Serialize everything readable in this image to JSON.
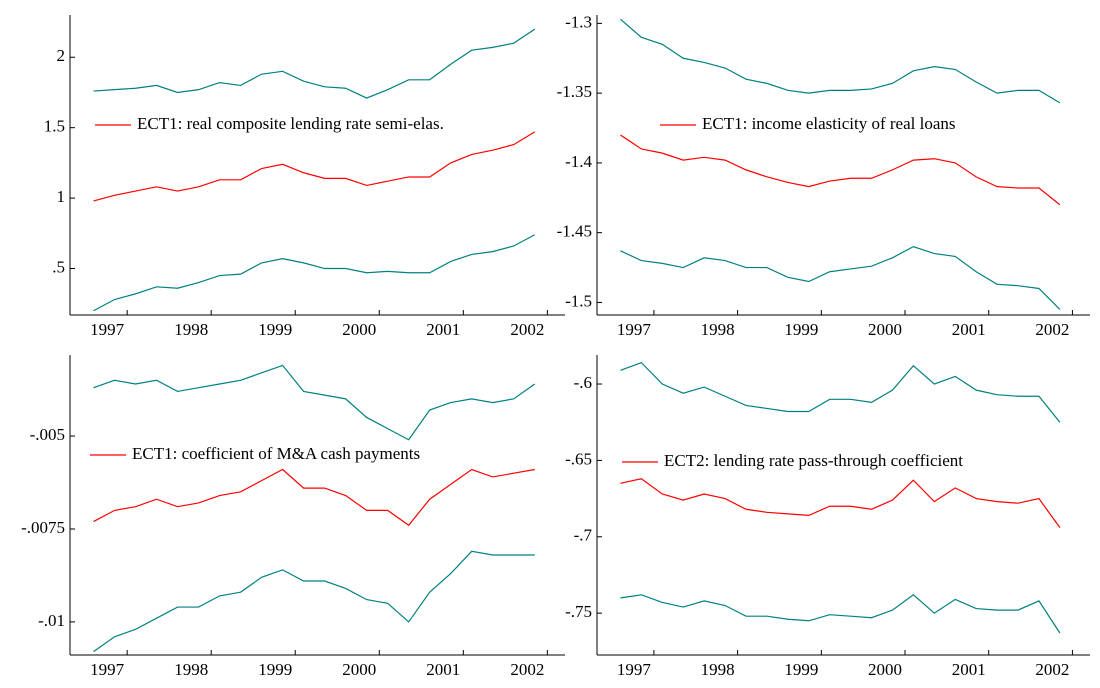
{
  "chart_data": [
    {
      "type": "line",
      "x": [
        1996.6,
        1996.85,
        1997.1,
        1997.35,
        1997.6,
        1997.85,
        1998.1,
        1998.35,
        1998.6,
        1998.85,
        1999.1,
        1999.35,
        1999.6,
        1999.85,
        2000.1,
        2000.35,
        2000.6,
        2000.85,
        2001.1,
        2001.35,
        2001.6,
        2001.85
      ],
      "xlim": [
        1996.32,
        2002.21
      ],
      "xticks": [
        1997,
        1998,
        1999,
        2000,
        2001,
        2002
      ],
      "ylim": [
        0.17,
        2.3
      ],
      "yticks": [
        {
          "value": 0.5,
          "label": ".5"
        },
        1,
        1.5,
        2
      ],
      "series": [
        {
          "color": "#008080",
          "values": [
            1.76,
            1.77,
            1.78,
            1.8,
            1.75,
            1.77,
            1.82,
            1.8,
            1.88,
            1.9,
            1.83,
            1.79,
            1.78,
            1.71,
            1.77,
            1.84,
            1.84,
            1.95,
            2.05,
            2.07,
            2.1,
            2.2
          ]
        },
        {
          "name": "ECT1: real composite lending rate semi-elas.",
          "color": "#ff0000",
          "values": [
            0.98,
            1.02,
            1.05,
            1.08,
            1.05,
            1.08,
            1.13,
            1.13,
            1.21,
            1.24,
            1.18,
            1.14,
            1.14,
            1.09,
            1.12,
            1.15,
            1.15,
            1.25,
            1.31,
            1.34,
            1.38,
            1.47
          ]
        },
        {
          "color": "#008080",
          "values": [
            0.2,
            0.28,
            0.32,
            0.37,
            0.36,
            0.4,
            0.45,
            0.46,
            0.54,
            0.57,
            0.54,
            0.5,
            0.5,
            0.47,
            0.48,
            0.47,
            0.47,
            0.55,
            0.6,
            0.62,
            0.66,
            0.74
          ]
        }
      ]
    },
    {
      "type": "line",
      "x": [
        1996.6,
        1996.85,
        1997.1,
        1997.35,
        1997.6,
        1997.85,
        1998.1,
        1998.35,
        1998.6,
        1998.85,
        1999.1,
        1999.35,
        1999.6,
        1999.85,
        2000.1,
        2000.35,
        2000.6,
        2000.85,
        2001.1,
        2001.35,
        2001.6,
        2001.85
      ],
      "xlim": [
        1996.32,
        2002.21
      ],
      "xticks": [
        1997,
        1998,
        1999,
        2000,
        2001,
        2002
      ],
      "ylim": [
        -1.509,
        -1.294
      ],
      "yticks": [
        -1.5,
        -1.45,
        -1.4,
        -1.35,
        -1.3
      ],
      "series": [
        {
          "color": "#008080",
          "values": [
            -1.297,
            -1.31,
            -1.315,
            -1.325,
            -1.328,
            -1.332,
            -1.34,
            -1.343,
            -1.348,
            -1.35,
            -1.348,
            -1.348,
            -1.347,
            -1.343,
            -1.334,
            -1.331,
            -1.333,
            -1.342,
            -1.35,
            -1.348,
            -1.348,
            -1.357
          ]
        },
        {
          "name": "ECT1: income elasticity of real loans",
          "color": "#ff0000",
          "values": [
            -1.38,
            -1.39,
            -1.393,
            -1.398,
            -1.396,
            -1.398,
            -1.405,
            -1.41,
            -1.414,
            -1.417,
            -1.413,
            -1.411,
            -1.411,
            -1.405,
            -1.398,
            -1.397,
            -1.4,
            -1.41,
            -1.417,
            -1.418,
            -1.418,
            -1.43
          ]
        },
        {
          "color": "#008080",
          "values": [
            -1.463,
            -1.47,
            -1.472,
            -1.475,
            -1.468,
            -1.47,
            -1.475,
            -1.475,
            -1.482,
            -1.485,
            -1.478,
            -1.476,
            -1.474,
            -1.468,
            -1.46,
            -1.465,
            -1.467,
            -1.478,
            -1.487,
            -1.488,
            -1.49,
            -1.505
          ]
        }
      ]
    },
    {
      "type": "line",
      "x": [
        1996.6,
        1996.85,
        1997.1,
        1997.35,
        1997.6,
        1997.85,
        1998.1,
        1998.35,
        1998.6,
        1998.85,
        1999.1,
        1999.35,
        1999.6,
        1999.85,
        2000.1,
        2000.35,
        2000.6,
        2000.85,
        2001.1,
        2001.35,
        2001.6,
        2001.85
      ],
      "xlim": [
        1996.32,
        2002.21
      ],
      "xticks": [
        1997,
        1998,
        1999,
        2000,
        2001,
        2002
      ],
      "ylim": [
        -0.01089,
        -0.00282
      ],
      "yticks": [
        {
          "value": -0.01,
          "label": "-.01"
        },
        {
          "value": -0.0075,
          "label": "-.0075"
        },
        {
          "value": -0.005,
          "label": "-.005"
        }
      ],
      "series": [
        {
          "color": "#008080",
          "values": [
            -0.0037,
            -0.0035,
            -0.0036,
            -0.0035,
            -0.0038,
            -0.0037,
            -0.0036,
            -0.0035,
            -0.0033,
            -0.0031,
            -0.0038,
            -0.0039,
            -0.004,
            -0.0045,
            -0.0048,
            -0.0051,
            -0.0043,
            -0.0041,
            -0.004,
            -0.0041,
            -0.004,
            -0.0036
          ]
        },
        {
          "name": "ECT1: coefficient of M&A cash payments",
          "color": "#ff0000",
          "values": [
            -0.0073,
            -0.007,
            -0.0069,
            -0.0067,
            -0.0069,
            -0.0068,
            -0.0066,
            -0.0065,
            -0.0062,
            -0.0059,
            -0.0064,
            -0.0064,
            -0.0066,
            -0.007,
            -0.007,
            -0.0074,
            -0.0067,
            -0.0063,
            -0.0059,
            -0.0061,
            -0.006,
            -0.0059
          ]
        },
        {
          "color": "#008080",
          "values": [
            -0.0108,
            -0.0104,
            -0.0102,
            -0.0099,
            -0.0096,
            -0.0096,
            -0.0093,
            -0.0092,
            -0.0088,
            -0.0086,
            -0.0089,
            -0.0089,
            -0.0091,
            -0.0094,
            -0.0095,
            -0.01,
            -0.0092,
            -0.0087,
            -0.0081,
            -0.0082,
            -0.0082,
            -0.0082
          ]
        }
      ]
    },
    {
      "type": "line",
      "x": [
        1996.6,
        1996.85,
        1997.1,
        1997.35,
        1997.6,
        1997.85,
        1998.1,
        1998.35,
        1998.6,
        1998.85,
        1999.1,
        1999.35,
        1999.6,
        1999.85,
        2000.1,
        2000.35,
        2000.6,
        2000.85,
        2001.1,
        2001.35,
        2001.6,
        2001.85
      ],
      "xlim": [
        1996.32,
        2002.21
      ],
      "xticks": [
        1997,
        1998,
        1999,
        2000,
        2001,
        2002
      ],
      "ylim": [
        -0.7774,
        -0.581
      ],
      "yticks": [
        {
          "value": -0.75,
          "label": "-.75"
        },
        {
          "value": -0.7,
          "label": "-.7"
        },
        {
          "value": -0.65,
          "label": "-.65"
        },
        {
          "value": -0.6,
          "label": "-.6"
        }
      ],
      "series": [
        {
          "color": "#008080",
          "values": [
            -0.591,
            -0.586,
            -0.6,
            -0.606,
            -0.602,
            -0.608,
            -0.614,
            -0.616,
            -0.618,
            -0.618,
            -0.61,
            -0.61,
            -0.612,
            -0.604,
            -0.588,
            -0.6,
            -0.595,
            -0.604,
            -0.607,
            -0.608,
            -0.608,
            -0.625
          ]
        },
        {
          "name": "ECT2: lending rate pass-through coefficient",
          "color": "#ff0000",
          "values": [
            -0.665,
            -0.662,
            -0.672,
            -0.676,
            -0.672,
            -0.675,
            -0.682,
            -0.684,
            -0.685,
            -0.686,
            -0.68,
            -0.68,
            -0.682,
            -0.676,
            -0.663,
            -0.677,
            -0.668,
            -0.675,
            -0.677,
            -0.678,
            -0.675,
            -0.694
          ]
        },
        {
          "color": "#008080",
          "values": [
            -0.74,
            -0.738,
            -0.743,
            -0.746,
            -0.742,
            -0.745,
            -0.752,
            -0.752,
            -0.754,
            -0.755,
            -0.751,
            -0.752,
            -0.753,
            -0.748,
            -0.738,
            -0.75,
            -0.741,
            -0.747,
            -0.748,
            -0.748,
            -0.742,
            -0.763
          ]
        }
      ]
    }
  ]
}
